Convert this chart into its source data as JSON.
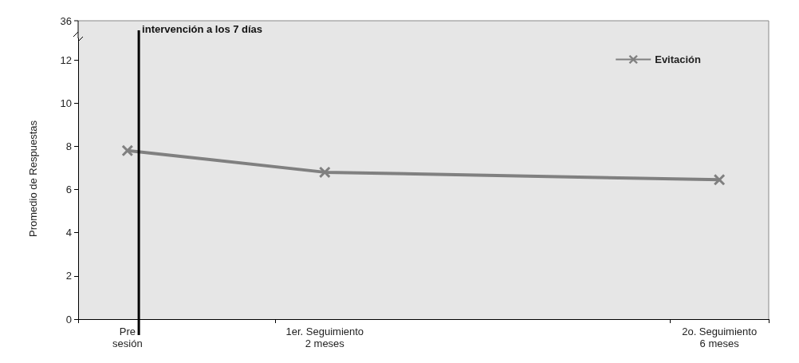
{
  "chart_data": {
    "type": "line",
    "ylabel": "Promedio de Respuestas",
    "categories": [
      "Pre\nsesión",
      null,
      "1er. Seguimiento\n2 meses",
      null,
      null,
      null,
      "2o. Seguimiento\n6 meses"
    ],
    "series": [
      {
        "name": "Evitación",
        "color": "#808080",
        "values": [
          7.8,
          null,
          6.8,
          null,
          null,
          null,
          6.45
        ]
      }
    ],
    "ylim": [
      0,
      13
    ],
    "yticks": [
      0,
      2,
      4,
      6,
      8,
      10,
      12
    ],
    "annotations": [
      "36",
      "intervención a los 7 días"
    ],
    "grid": false,
    "legend": "top right",
    "marker": "cross",
    "line_style": "solid"
  }
}
